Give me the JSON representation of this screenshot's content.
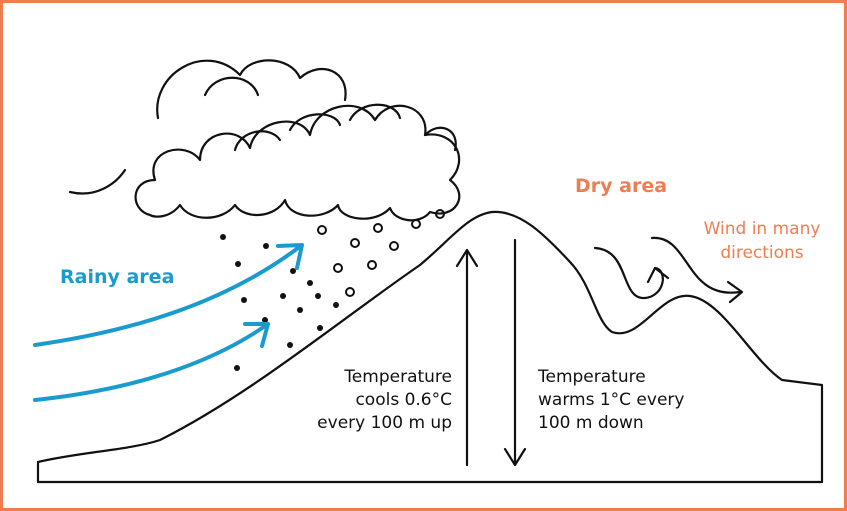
{
  "labels": {
    "rainy": "Rainy area",
    "dry": "Dry area",
    "wind": [
      "Wind in many",
      "directions"
    ],
    "cools": [
      "Temperature",
      "cools 0.6°C",
      "every 100 m up"
    ],
    "warms": [
      "Temperature",
      "warms 1°C every",
      "100 m down"
    ]
  }
}
